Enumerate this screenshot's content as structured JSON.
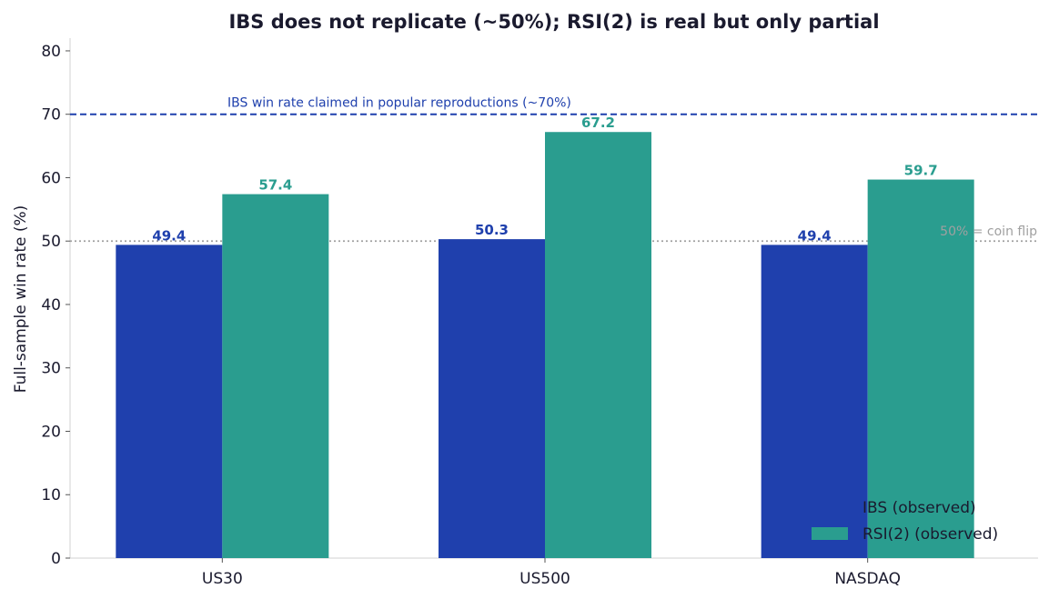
{
  "chart_data": {
    "type": "bar",
    "title": "IBS does not replicate (~50%); RSI(2) is real but only partial",
    "xlabel": "",
    "ylabel": "Full-sample win rate (%)",
    "ylim": [
      0,
      82
    ],
    "yticks": [
      0,
      10,
      20,
      30,
      40,
      50,
      60,
      70,
      80
    ],
    "categories": [
      "US30",
      "US500",
      "NASDAQ"
    ],
    "series": [
      {
        "name": "IBS (observed)",
        "values": [
          49.4,
          50.3,
          49.4
        ],
        "color": "#1f40ad",
        "labels": [
          "49.4",
          "50.3",
          "49.4"
        ]
      },
      {
        "name": "RSI(2) (observed)",
        "values": [
          57.4,
          67.2,
          59.7
        ],
        "color": "#2a9d8f",
        "labels": [
          "57.4",
          "67.2",
          "59.7"
        ]
      }
    ],
    "reference_lines": [
      {
        "value": 70,
        "label": "IBS win rate claimed in popular reproductions (~70%)",
        "style": "dashed",
        "color": "#1f40ad"
      },
      {
        "value": 50,
        "label": "50% = coin flip",
        "style": "dotted",
        "color": "#a0a0a0"
      }
    ],
    "grid": false,
    "legend_position": "bottom-right"
  }
}
